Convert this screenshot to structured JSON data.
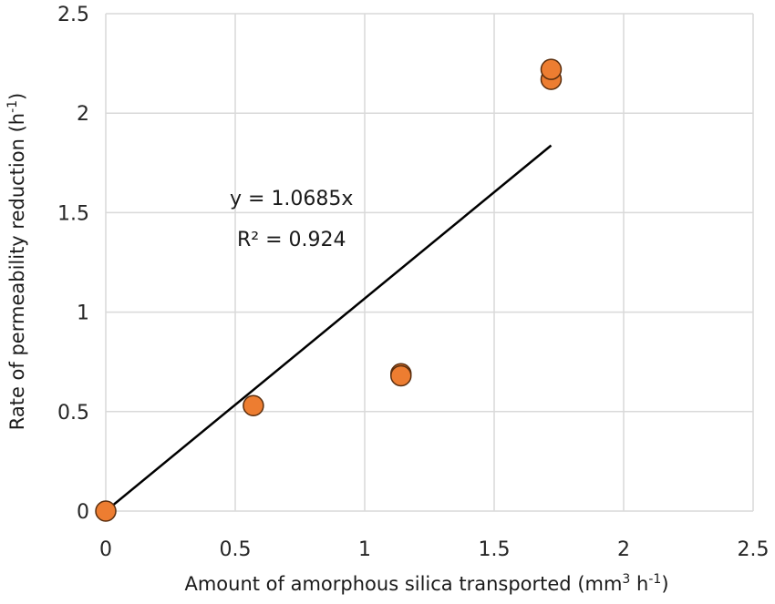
{
  "chart_data": {
    "type": "scatter",
    "x_ticks": [
      "0",
      "0.5",
      "1",
      "1.5",
      "2",
      "2.5"
    ],
    "y_ticks": [
      "0",
      "0.5",
      "1",
      "1.5",
      "2",
      "2.5"
    ],
    "xlim": [
      0,
      2.5
    ],
    "ylim": [
      0,
      2.5
    ],
    "xlabel": "Amount of amorphous silica transported (mm",
    "xlabel_sup": "3",
    "xlabel_mid": " h",
    "xlabel_sup2": "-1",
    "xlabel_end": ")",
    "ylabel": "Rate of permeability reduction (h",
    "ylabel_sup": "-1",
    "ylabel_end": ")",
    "grid": true,
    "marker_color": "#ed7d31",
    "marker_edge_color": "#5a2e0e",
    "line_color": "#000000",
    "points": [
      {
        "x": 0.0,
        "y": 0.0
      },
      {
        "x": 0.57,
        "y": 0.53
      },
      {
        "x": 1.14,
        "y": 0.69
      },
      {
        "x": 1.14,
        "y": 0.68
      },
      {
        "x": 1.72,
        "y": 2.17
      },
      {
        "x": 1.72,
        "y": 2.22
      }
    ],
    "trendline": {
      "slope": 1.0685,
      "x_start": 0,
      "x_end": 1.72,
      "equation": "y = 1.0685x",
      "r_squared": "R² = 0.924"
    }
  }
}
